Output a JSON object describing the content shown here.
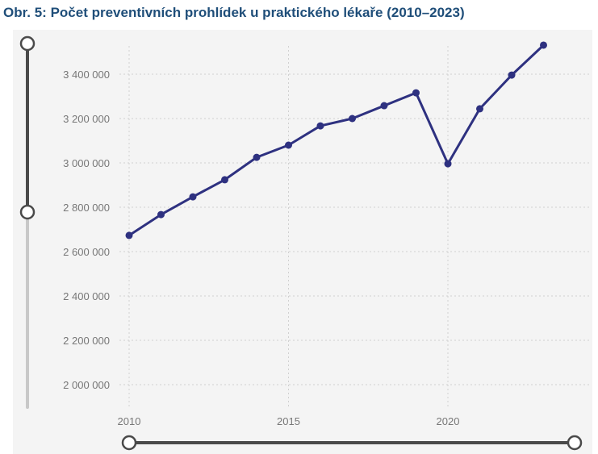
{
  "chart_data": {
    "type": "line",
    "title": "Obr. 5: Počet preventivních prohlídek u praktického lékaře (2010–2023)",
    "xlabel": "",
    "ylabel": "",
    "x": [
      2010,
      2011,
      2012,
      2013,
      2014,
      2015,
      2016,
      2017,
      2018,
      2019,
      2020,
      2021,
      2022,
      2023
    ],
    "series": [
      {
        "name": "Počet preventivních prohlídek",
        "values": [
          2673000,
          2767000,
          2847000,
          2924000,
          3025000,
          3080000,
          3167000,
          3200000,
          3258000,
          3316000,
          2996000,
          3244000,
          3396000,
          3531000
        ]
      }
    ],
    "xticks": [
      2010,
      2015,
      2020
    ],
    "xtick_labels": [
      "2010",
      "2015",
      "2020"
    ],
    "yticks": [
      2000000,
      2200000,
      2400000,
      2600000,
      2800000,
      3000000,
      3200000,
      3400000
    ],
    "ytick_labels": [
      "2 000 000",
      "2 200 000",
      "2 400 000",
      "2 600 000",
      "2 800 000",
      "3 000 000",
      "3 200 000",
      "3 400 000"
    ],
    "grid": true,
    "legend": "none",
    "colors": {
      "line": "#2e3180",
      "background": "#f4f4f4",
      "title": "#1f4e79"
    }
  }
}
